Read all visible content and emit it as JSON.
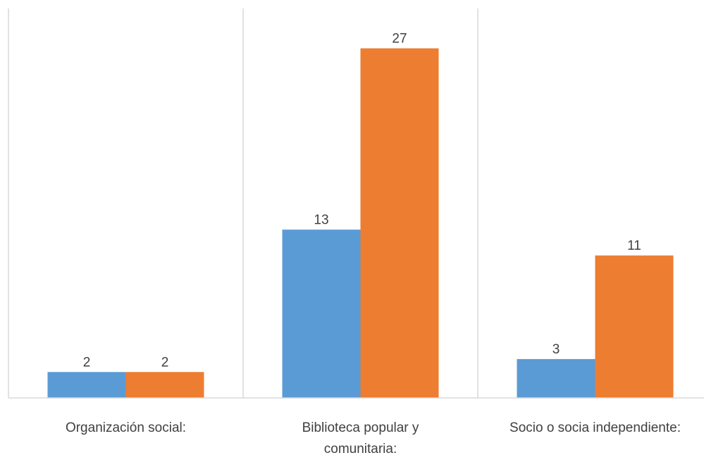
{
  "chart_data": {
    "type": "bar",
    "categories": [
      "Organización social:",
      "Biblioteca popular y comunitaria:",
      "Socio o socia independiente:"
    ],
    "category_lines": [
      [
        "Organización social:"
      ],
      [
        "Biblioteca popular y",
        "comunitaria:"
      ],
      [
        "Socio o socia independiente:"
      ]
    ],
    "series": [
      {
        "values": [
          2,
          13,
          3
        ],
        "color": "#5B9BD5"
      },
      {
        "values": [
          2,
          27,
          11
        ],
        "color": "#ED7D31"
      }
    ],
    "ylim": [
      0,
      30
    ],
    "data_labels": true,
    "grid": false
  }
}
